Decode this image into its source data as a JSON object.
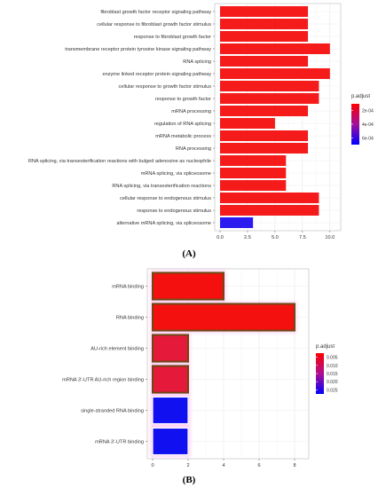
{
  "chart_data": [
    {
      "type": "bar",
      "orientation": "horizontal",
      "panel_label": "(A)",
      "categories": [
        "fibroblast growth factor receptor signaling pathway",
        "cellular response to fibroblast growth factor stimulus",
        "response to fibroblast growth factor",
        "transmembrane receptor protein tyrosine kinase signaling pathway",
        "RNA splicing",
        "enzyme linked receptor protein signaling pathway",
        "cellular response to growth factor stimulus",
        "response to growth factor",
        "mRNA processing",
        "regulation of RNA splicing",
        "mRNA metabolic process",
        "RNA processing",
        "RNA splicing, via transesterification reactions with bulged adenosine as nucleophile",
        "mRNA splicing, via spliceosome",
        "RNA splicing, via transesterification reactions",
        "cellular response to endogenous stimulus",
        "response to endogenous stimulus",
        "alternative mRNA splicing, via spliceosome"
      ],
      "values": [
        8,
        8,
        8,
        10,
        8,
        10,
        9,
        9,
        8,
        5,
        8,
        8,
        6,
        6,
        6,
        9,
        9,
        3
      ],
      "p_adjust": [
        1e-05,
        1e-05,
        1e-05,
        1e-05,
        1e-05,
        1e-05,
        1e-05,
        1e-05,
        1e-05,
        1e-05,
        1e-05,
        1e-05,
        1e-05,
        1e-05,
        1e-05,
        1e-05,
        1e-05,
        0.00065
      ],
      "bar_colors": [
        "#f51b1b",
        "#f51b1b",
        "#f51b1b",
        "#f51b1b",
        "#f51b1b",
        "#f51b1b",
        "#f51b1b",
        "#f51b1b",
        "#f51b1b",
        "#f51b1b",
        "#f51b1b",
        "#f51b1b",
        "#f51b1b",
        "#f51b1b",
        "#f51b1b",
        "#f51b1b",
        "#f51b1b",
        "#2b1bf0"
      ],
      "xlim": [
        0,
        10.5
      ],
      "xticks": [
        "0.0",
        "2.5",
        "5.0",
        "7.5",
        "10.0"
      ],
      "xtick_values": [
        0,
        2.5,
        5,
        7.5,
        10
      ],
      "legend": {
        "title": "p.adjust",
        "labels": [
          "2e-04",
          "4e-04",
          "6e-04"
        ],
        "placement": "right",
        "gradient": [
          "#ff0000",
          "#0000ff"
        ]
      },
      "grid": true
    },
    {
      "type": "bar",
      "orientation": "horizontal",
      "panel_label": "(B)",
      "categories": [
        "mRNA binding",
        "RNA binding",
        "AU-rich element binding",
        "mRNA 3'-UTR AU-rich region binding",
        "single-stranded RNA binding",
        "mRNA 3'-UTR binding"
      ],
      "values": [
        4,
        8,
        2,
        2,
        2,
        2
      ],
      "p_adjust": [
        0.001,
        0.001,
        0.006,
        0.006,
        0.026,
        0.026
      ],
      "bar_colors": [
        "#f51010",
        "#f51010",
        "#e5193a",
        "#e5193a",
        "#1010f0",
        "#1010f0"
      ],
      "bar_outlines": [
        "#6b4a12",
        "#6b4a12",
        "#6b4a12",
        "#6b4a12",
        "#ffffff",
        "#ffffff"
      ],
      "xlim": [
        0,
        8.5
      ],
      "xticks": [
        "0",
        "2",
        "4",
        "6",
        "8"
      ],
      "xtick_values": [
        0,
        2,
        4,
        6,
        8
      ],
      "legend": {
        "title": "p.adjust",
        "labels": [
          "0.005",
          "0.010",
          "0.015",
          "0.020",
          "0.025"
        ],
        "placement": "right",
        "gradient": [
          "#ff0000",
          "#0000ff"
        ]
      },
      "grid": true
    }
  ]
}
